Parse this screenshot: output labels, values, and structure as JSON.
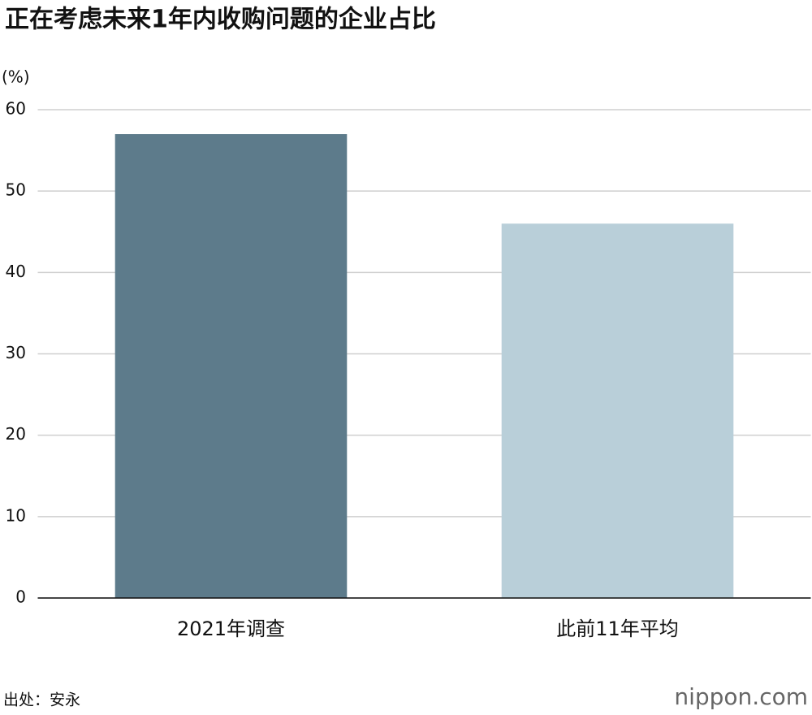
{
  "chart_data": {
    "type": "bar",
    "title": "正在考虑未来1年内收购问题的企业占比",
    "y_label": "(%)",
    "categories": [
      "2021年调查",
      "此前11年平均"
    ],
    "values": [
      57,
      46
    ],
    "colors": [
      "#5d7b8b",
      "#b9cfd9"
    ],
    "ylim": [
      0,
      60
    ],
    "yticks": [
      0,
      10,
      20,
      30,
      40,
      50,
      60
    ],
    "grid": true,
    "source": "出处：安永",
    "logo": "nippon.com"
  }
}
